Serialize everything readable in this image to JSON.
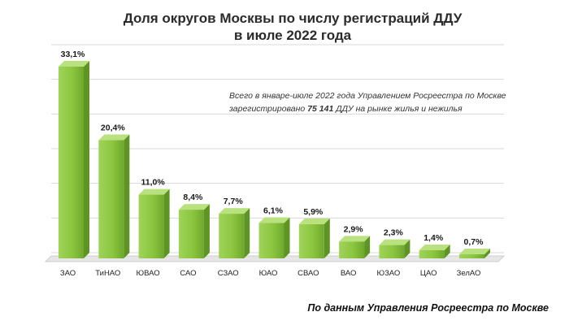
{
  "chart_data": {
    "type": "bar",
    "title_line1": "Доля округов Москвы по числу регистраций ДДУ",
    "title_line2": "в июле 2022 года",
    "categories": [
      "ЗАО",
      "ТиНАО",
      "ЮВАО",
      "САО",
      "СЗАО",
      "ЮАО",
      "СВАО",
      "ВАО",
      "ЮЗАО",
      "ЦАО",
      "ЗелАО"
    ],
    "values": [
      33.1,
      20.4,
      11.0,
      8.4,
      7.7,
      6.1,
      5.9,
      2.9,
      2.3,
      1.4,
      0.7
    ],
    "value_labels": [
      "33,1%",
      "20,4%",
      "11,0%",
      "8,4%",
      "7,7%",
      "6,1%",
      "5,9%",
      "2,9%",
      "2,3%",
      "1,4%",
      "0,7%"
    ],
    "ylim": [
      0,
      35
    ],
    "grid": true,
    "bar_color": "#8cc63f"
  },
  "annotation": {
    "line1": "Всего в январе-июле 2022 года Управлением Росреестра по Москве",
    "line2_prefix": "зарегистрировано",
    "line2_value": "75 141",
    "line2_suffix": "ДДУ на рынке жилья и нежилья"
  },
  "source": "По данным Управления Росреестра по Москве"
}
